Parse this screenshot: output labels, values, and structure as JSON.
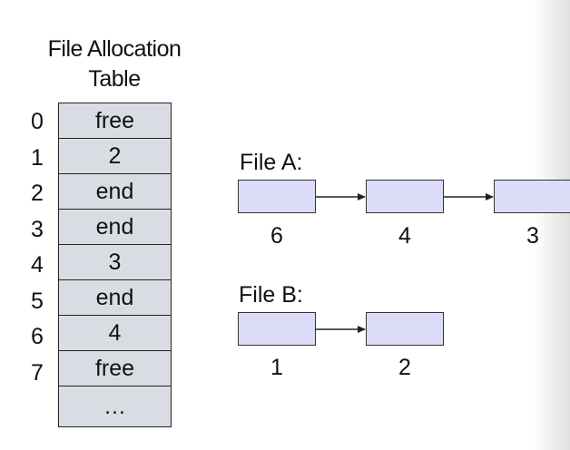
{
  "fat": {
    "title_line1": "File Allocation",
    "title_line2": "Table",
    "indices": [
      "0",
      "1",
      "2",
      "3",
      "4",
      "5",
      "6",
      "7"
    ],
    "entries": [
      "free",
      "2",
      "end",
      "end",
      "3",
      "end",
      "4",
      "free",
      "…"
    ]
  },
  "files": [
    {
      "label": "File A:",
      "blocks": [
        "6",
        "4",
        "3"
      ]
    },
    {
      "label": "File B:",
      "blocks": [
        "1",
        "2"
      ]
    }
  ],
  "colors": {
    "table_fill": "#d9dde3",
    "block_fill": "#dcdcf8",
    "stroke": "#222222"
  }
}
